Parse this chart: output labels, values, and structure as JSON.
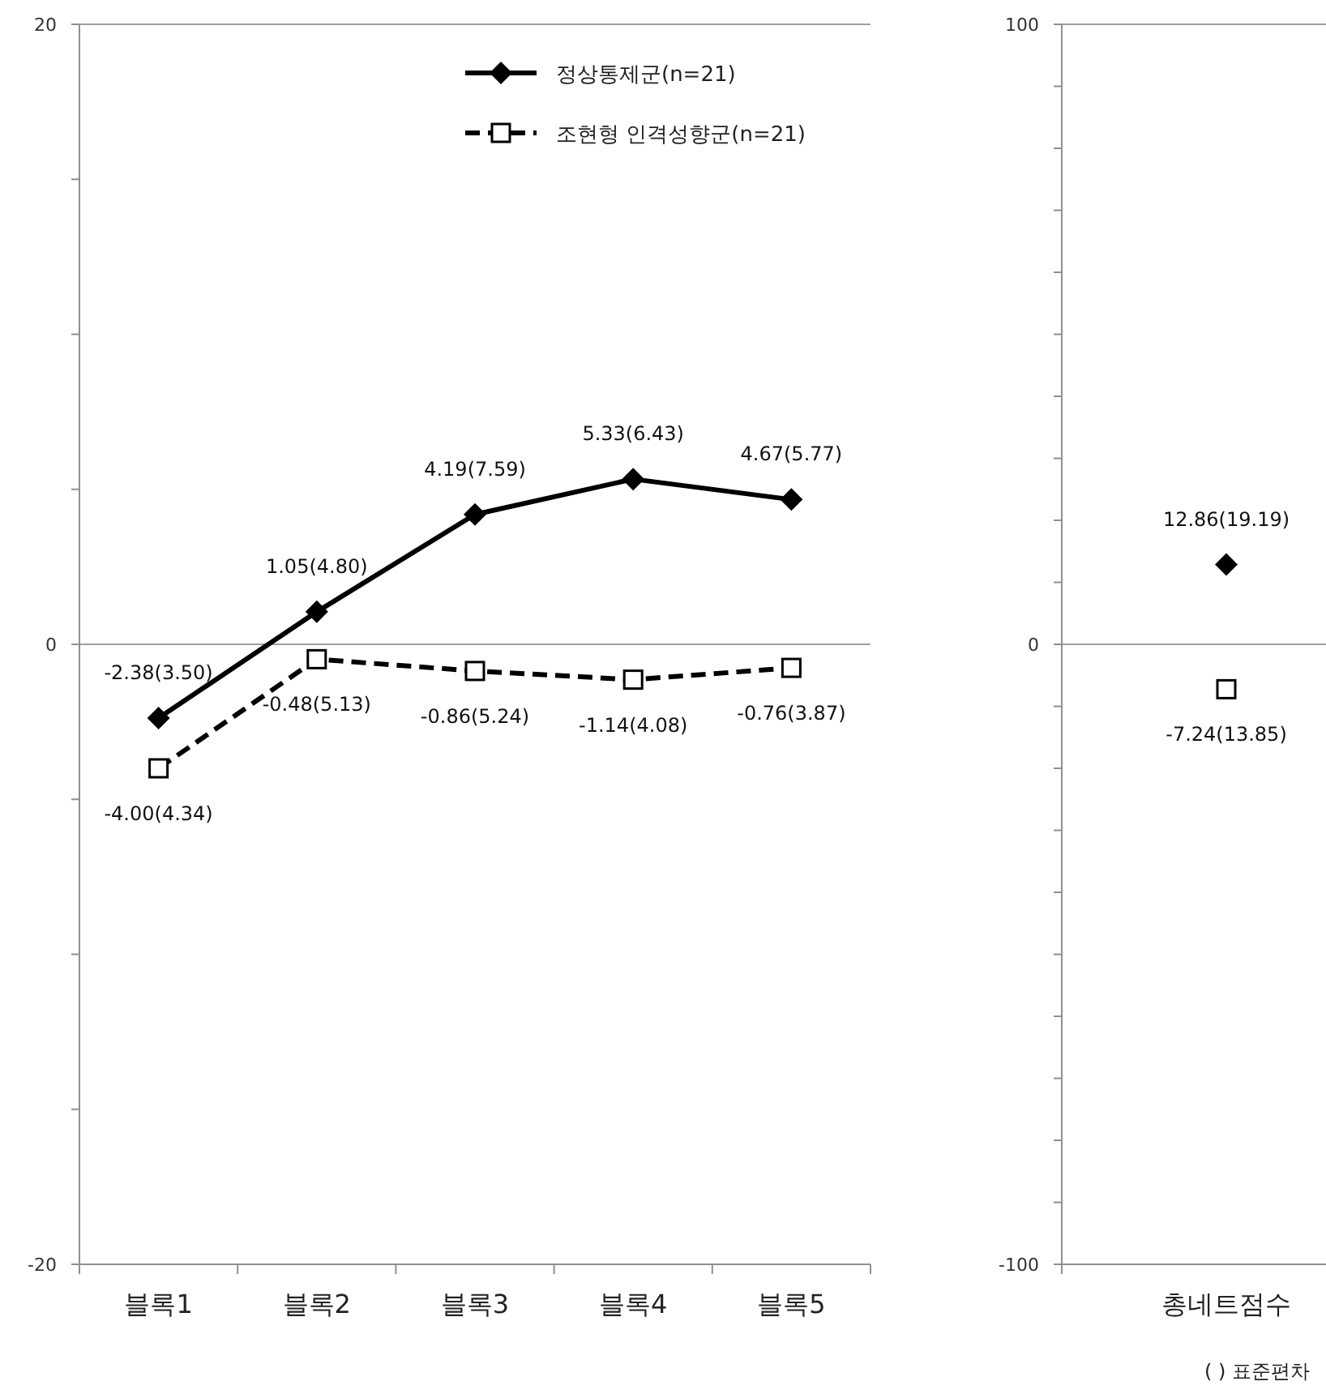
{
  "chart_data": [
    {
      "type": "line",
      "categories": [
        "블록1",
        "블록2",
        "블록3",
        "블록4",
        "블록5"
      ],
      "ylim": [
        -20,
        20
      ],
      "yticks": [
        -20,
        {
          "value": -15,
          "label": null
        },
        {
          "value": -10,
          "label": null
        },
        {
          "value": -5,
          "label": null
        },
        0,
        {
          "value": 5,
          "label": null
        },
        {
          "value": 10,
          "label": null
        },
        {
          "value": 15,
          "label": null
        },
        20
      ],
      "grid": "y",
      "legend": "top right",
      "series": [
        {
          "name": "정상통제군(n=21)",
          "color": "#000000",
          "marker": "diamond",
          "line_style": "solid",
          "values": [
            -2.38,
            1.05,
            4.19,
            5.33,
            4.67
          ],
          "value_labels": [
            "-2.38(3.50)",
            "1.05(4.80)",
            "4.19(7.59)",
            "5.33(6.43)",
            "4.67(5.77)"
          ]
        },
        {
          "name": "조현형 인격성향군(n=21)",
          "color": "#000000",
          "marker": "square",
          "line_style": "dashed",
          "values": [
            -4.0,
            -0.48,
            -0.86,
            -1.14,
            -0.76
          ],
          "value_labels": [
            "-4.00(4.34)",
            "-0.48(5.13)",
            "-0.86(5.24)",
            "-1.14(4.08)",
            "-0.76(3.87)"
          ]
        }
      ]
    },
    {
      "type": "scatter",
      "categories": [
        "총네트점수"
      ],
      "ylim": [
        -100,
        100
      ],
      "yticks": [
        -100,
        {
          "value": -90,
          "label": null
        },
        {
          "value": -80,
          "label": null
        },
        {
          "value": -70,
          "label": null
        },
        {
          "value": -60,
          "label": null
        },
        {
          "value": -50,
          "label": null
        },
        {
          "value": -40,
          "label": null
        },
        {
          "value": -30,
          "label": null
        },
        {
          "value": -20,
          "label": null
        },
        {
          "value": -10,
          "label": null
        },
        0,
        {
          "value": 10,
          "label": null
        },
        {
          "value": 20,
          "label": null
        },
        {
          "value": 30,
          "label": null
        },
        {
          "value": 40,
          "label": null
        },
        {
          "value": 50,
          "label": null
        },
        {
          "value": 60,
          "label": null
        },
        {
          "value": 70,
          "label": null
        },
        {
          "value": 80,
          "label": null
        },
        {
          "value": 90,
          "label": null
        },
        100
      ],
      "grid": "y",
      "annotations": [
        "(      ) 표준편차"
      ],
      "series": [
        {
          "color": "#000000",
          "marker": "diamond",
          "values": [
            12.86
          ],
          "value_labels": [
            "12.86(19.19)"
          ]
        },
        {
          "color": "#000000",
          "marker": "square",
          "values": [
            -7.24
          ],
          "value_labels": [
            "-7.24(13.85)"
          ]
        }
      ]
    }
  ]
}
